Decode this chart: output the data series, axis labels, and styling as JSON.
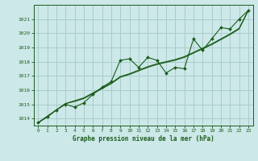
{
  "title": "Graphe pression niveau de la mer (hPa)",
  "bg_color": "#cce8e8",
  "grid_color": "#aacccc",
  "line_color": "#1a5c1a",
  "text_color": "#1a5c1a",
  "xlim": [
    -0.5,
    23.5
  ],
  "ylim": [
    1013.5,
    1022.0
  ],
  "xticks": [
    0,
    1,
    2,
    3,
    4,
    5,
    6,
    7,
    8,
    9,
    10,
    11,
    12,
    13,
    14,
    15,
    16,
    17,
    18,
    19,
    20,
    21,
    22,
    23
  ],
  "yticks": [
    1014,
    1015,
    1016,
    1017,
    1018,
    1019,
    1020,
    1021
  ],
  "series_main": [
    1013.7,
    1014.1,
    1014.6,
    1015.0,
    1014.8,
    1015.1,
    1015.7,
    1016.2,
    1016.6,
    1018.1,
    1018.2,
    1017.6,
    1018.3,
    1018.1,
    1017.2,
    1017.6,
    1017.5,
    1019.6,
    1018.8,
    1019.6,
    1020.4,
    1020.3,
    1021.0,
    1021.6
  ],
  "series_trend1": [
    1013.7,
    1014.15,
    1014.6,
    1015.05,
    1015.2,
    1015.4,
    1015.75,
    1016.1,
    1016.45,
    1016.9,
    1017.1,
    1017.35,
    1017.6,
    1017.8,
    1017.95,
    1018.1,
    1018.3,
    1018.6,
    1018.9,
    1019.2,
    1019.55,
    1019.9,
    1020.3,
    1021.6
  ],
  "series_trend2": [
    1013.7,
    1014.15,
    1014.6,
    1015.05,
    1015.25,
    1015.45,
    1015.8,
    1016.15,
    1016.5,
    1016.95,
    1017.15,
    1017.4,
    1017.65,
    1017.85,
    1018.0,
    1018.15,
    1018.35,
    1018.65,
    1018.95,
    1019.25,
    1019.6,
    1019.95,
    1020.35,
    1021.6
  ]
}
